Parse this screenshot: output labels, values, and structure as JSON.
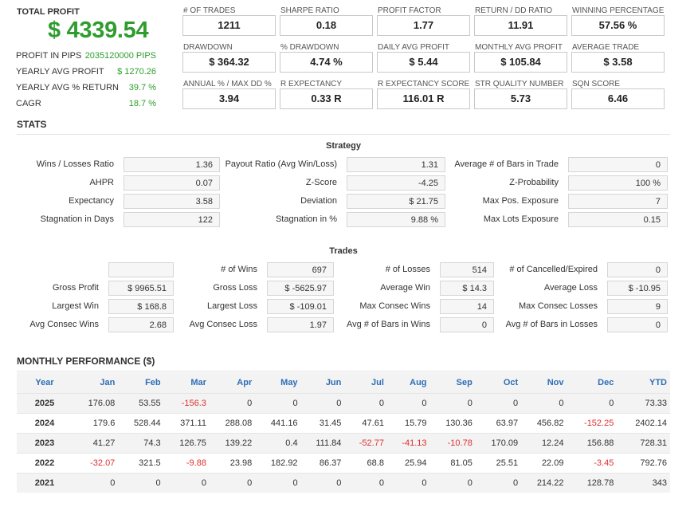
{
  "summary": {
    "total_profit_label": "TOTAL PROFIT",
    "total_profit_value": "$ 4339.54",
    "rows": [
      {
        "label": "PROFIT IN PIPS",
        "value": "2035120000 PIPS"
      },
      {
        "label": "YEARLY AVG PROFIT",
        "value": "$ 1270.26"
      },
      {
        "label": "YEARLY AVG % RETURN",
        "value": "39.7 %"
      },
      {
        "label": "CAGR",
        "value": "18.7 %"
      }
    ]
  },
  "metrics": [
    {
      "label": "# OF TRADES",
      "value": "1211"
    },
    {
      "label": "SHARPE RATIO",
      "value": "0.18"
    },
    {
      "label": "PROFIT FACTOR",
      "value": "1.77"
    },
    {
      "label": "RETURN / DD RATIO",
      "value": "11.91"
    },
    {
      "label": "WINNING PERCENTAGE",
      "value": "57.56 %"
    },
    {
      "label": "DRAWDOWN",
      "value": "$ 364.32"
    },
    {
      "label": "% DRAWDOWN",
      "value": "4.74 %"
    },
    {
      "label": "DAILY AVG PROFIT",
      "value": "$ 5.44"
    },
    {
      "label": "MONTHLY AVG PROFIT",
      "value": "$ 105.84"
    },
    {
      "label": "AVERAGE TRADE",
      "value": "$ 3.58"
    },
    {
      "label": "ANNUAL % / MAX DD %",
      "value": "3.94"
    },
    {
      "label": "R EXPECTANCY",
      "value": "0.33 R"
    },
    {
      "label": "R EXPECTANCY SCORE",
      "value": "116.01 R"
    },
    {
      "label": "STR QUALITY NUMBER",
      "value": "5.73"
    },
    {
      "label": "SQN SCORE",
      "value": "6.46"
    }
  ],
  "stats": {
    "title": "STATS",
    "strategy": {
      "title": "Strategy",
      "fields": [
        {
          "label": "Wins / Losses Ratio",
          "value": "1.36"
        },
        {
          "label": "Payout Ratio (Avg Win/Loss)",
          "value": "1.31"
        },
        {
          "label": "Average # of Bars in Trade",
          "value": "0"
        },
        {
          "label": "AHPR",
          "value": "0.07"
        },
        {
          "label": "Z-Score",
          "value": "-4.25"
        },
        {
          "label": "Z-Probability",
          "value": "100 %"
        },
        {
          "label": "Expectancy",
          "value": "3.58"
        },
        {
          "label": "Deviation",
          "value": "$ 21.75"
        },
        {
          "label": "Max Pos. Exposure",
          "value": "7"
        },
        {
          "label": "Stagnation in Days",
          "value": "122"
        },
        {
          "label": "Stagnation in %",
          "value": "9.88 %"
        },
        {
          "label": "Max Lots Exposure",
          "value": "0.15"
        }
      ]
    },
    "trades": {
      "title": "Trades",
      "fields": [
        {
          "label": "",
          "value": ""
        },
        {
          "label": "# of Wins",
          "value": "697"
        },
        {
          "label": "# of Losses",
          "value": "514"
        },
        {
          "label": "# of Cancelled/Expired",
          "value": "0"
        },
        {
          "label": "Gross Profit",
          "value": "$ 9965.51"
        },
        {
          "label": "Gross Loss",
          "value": "$ -5625.97"
        },
        {
          "label": "Average Win",
          "value": "$ 14.3"
        },
        {
          "label": "Average Loss",
          "value": "$ -10.95"
        },
        {
          "label": "Largest Win",
          "value": "$ 168.8"
        },
        {
          "label": "Largest Loss",
          "value": "$ -109.01"
        },
        {
          "label": "Max Consec Wins",
          "value": "14"
        },
        {
          "label": "Max Consec Losses",
          "value": "9"
        },
        {
          "label": "Avg Consec Wins",
          "value": "2.68"
        },
        {
          "label": "Avg Consec Loss",
          "value": "1.97"
        },
        {
          "label": "Avg # of Bars in Wins",
          "value": "0"
        },
        {
          "label": "Avg # of Bars in Losses",
          "value": "0"
        }
      ]
    }
  },
  "monthly": {
    "title": "MONTHLY PERFORMANCE ($)",
    "headers": [
      "Year",
      "Jan",
      "Feb",
      "Mar",
      "Apr",
      "May",
      "Jun",
      "Jul",
      "Aug",
      "Sep",
      "Oct",
      "Nov",
      "Dec",
      "YTD"
    ],
    "rows": [
      [
        "2025",
        "176.08",
        "53.55",
        "-156.3",
        "0",
        "0",
        "0",
        "0",
        "0",
        "0",
        "0",
        "0",
        "0",
        "73.33"
      ],
      [
        "2024",
        "179.6",
        "528.44",
        "371.11",
        "288.08",
        "441.16",
        "31.45",
        "47.61",
        "15.79",
        "130.36",
        "63.97",
        "456.82",
        "-152.25",
        "2402.14"
      ],
      [
        "2023",
        "41.27",
        "74.3",
        "126.75",
        "139.22",
        "0.4",
        "111.84",
        "-52.77",
        "-41.13",
        "-10.78",
        "170.09",
        "12.24",
        "156.88",
        "728.31"
      ],
      [
        "2022",
        "-32.07",
        "321.5",
        "-9.88",
        "23.98",
        "182.92",
        "86.37",
        "68.8",
        "25.94",
        "81.05",
        "25.51",
        "22.09",
        "-3.45",
        "792.76"
      ],
      [
        "2021",
        "0",
        "0",
        "0",
        "0",
        "0",
        "0",
        "0",
        "0",
        "0",
        "0",
        "214.22",
        "128.78",
        "343"
      ]
    ],
    "colors": {
      "negative": "#e03030",
      "header": "#2f6db5",
      "positive_summary": "#2e9d2e"
    }
  }
}
